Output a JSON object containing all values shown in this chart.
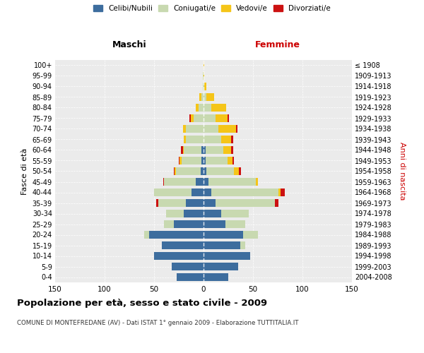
{
  "age_groups": [
    "0-4",
    "5-9",
    "10-14",
    "15-19",
    "20-24",
    "25-29",
    "30-34",
    "35-39",
    "40-44",
    "45-49",
    "50-54",
    "55-59",
    "60-64",
    "65-69",
    "70-74",
    "75-79",
    "80-84",
    "85-89",
    "90-94",
    "95-99",
    "100+"
  ],
  "birth_years": [
    "2004-2008",
    "1999-2003",
    "1994-1998",
    "1989-1993",
    "1984-1988",
    "1979-1983",
    "1974-1978",
    "1969-1973",
    "1964-1968",
    "1959-1963",
    "1954-1958",
    "1949-1953",
    "1944-1948",
    "1939-1943",
    "1934-1938",
    "1929-1933",
    "1924-1928",
    "1919-1923",
    "1914-1918",
    "1909-1913",
    "≤ 1908"
  ],
  "males": {
    "celibi": [
      27,
      32,
      50,
      42,
      55,
      30,
      20,
      18,
      12,
      8,
      3,
      2,
      2,
      0,
      0,
      0,
      0,
      0,
      0,
      0,
      0
    ],
    "coniugati": [
      0,
      0,
      0,
      0,
      5,
      10,
      18,
      28,
      38,
      32,
      25,
      20,
      18,
      18,
      18,
      10,
      5,
      2,
      1,
      1,
      0
    ],
    "vedovi": [
      0,
      0,
      0,
      0,
      0,
      0,
      0,
      0,
      0,
      0,
      1,
      2,
      1,
      2,
      3,
      3,
      3,
      2,
      0,
      0,
      0
    ],
    "divorziati": [
      0,
      0,
      0,
      0,
      0,
      0,
      0,
      2,
      0,
      1,
      1,
      1,
      2,
      0,
      0,
      1,
      0,
      0,
      0,
      0,
      0
    ]
  },
  "females": {
    "nubili": [
      25,
      35,
      47,
      37,
      40,
      22,
      18,
      12,
      8,
      5,
      3,
      2,
      2,
      0,
      0,
      0,
      0,
      0,
      0,
      0,
      0
    ],
    "coniugate": [
      0,
      0,
      0,
      5,
      15,
      20,
      28,
      60,
      68,
      48,
      28,
      22,
      18,
      18,
      15,
      12,
      8,
      3,
      1,
      0,
      0
    ],
    "vedove": [
      0,
      0,
      0,
      0,
      0,
      0,
      0,
      0,
      2,
      2,
      5,
      5,
      8,
      10,
      18,
      12,
      15,
      8,
      2,
      1,
      1
    ],
    "divorziate": [
      0,
      0,
      0,
      0,
      0,
      0,
      0,
      4,
      4,
      0,
      2,
      2,
      2,
      2,
      1,
      2,
      0,
      0,
      0,
      0,
      0
    ]
  },
  "colors": {
    "celibi": "#3d6d9e",
    "coniugati": "#c8d9b0",
    "vedovi": "#f5c518",
    "divorziati": "#cc1111"
  },
  "title": "Popolazione per età, sesso e stato civile - 2009",
  "subtitle": "COMUNE DI MONTEFREDANE (AV) - Dati ISTAT 1° gennaio 2009 - Elaborazione TUTTITALIA.IT",
  "xlabel_left": "Maschi",
  "xlabel_right": "Femmine",
  "ylabel_left": "Fasce di età",
  "ylabel_right": "Anni di nascita",
  "xlim": 150,
  "background_color": "#ffffff",
  "ax_bg_color": "#ebebeb",
  "grid_color": "#ffffff",
  "legend_labels": [
    "Celibi/Nubili",
    "Coniugati/e",
    "Vedovi/e",
    "Divorziati/e"
  ]
}
